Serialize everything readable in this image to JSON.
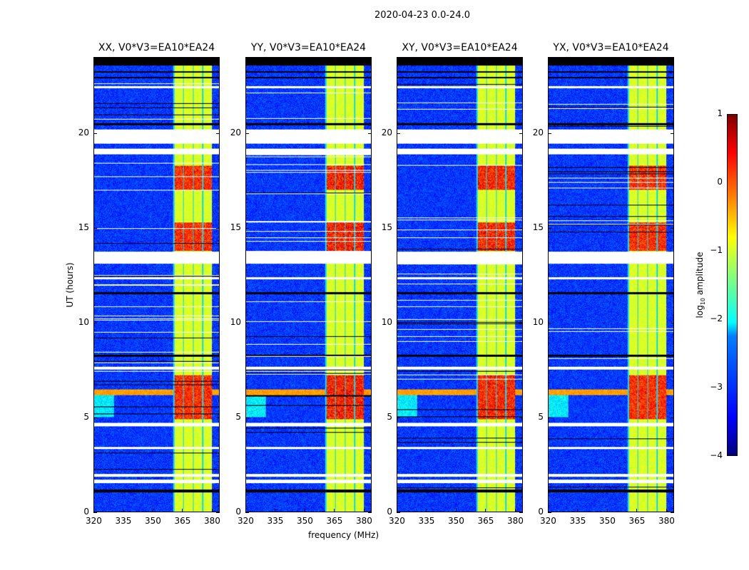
{
  "chart_data": {
    "type": "heatmap",
    "title": "2020-04-23 0.0-24.0",
    "xlabel": "frequency (MHz)",
    "ylabel": "UT (hours)",
    "xlim": [
      320,
      384
    ],
    "ylim": [
      0,
      24
    ],
    "xticks": [
      "320",
      "335",
      "350",
      "365",
      "380"
    ],
    "xtick_values": [
      320,
      335,
      350,
      365,
      380
    ],
    "yticks": [
      "0",
      "5",
      "10",
      "15",
      "20"
    ],
    "ytick_values": [
      0,
      5,
      10,
      15,
      20
    ],
    "panels": [
      {
        "title": "XX, V0*V3=EA10*EA24",
        "strong_rfi_scale": 1.0
      },
      {
        "title": "YY, V0*V3=EA10*EA24",
        "strong_rfi_scale": 1.2
      },
      {
        "title": "XY, V0*V3=EA10*EA24",
        "strong_rfi_scale": 1.1
      },
      {
        "title": "YX, V0*V3=EA10*EA24",
        "strong_rfi_scale": 1.0
      }
    ],
    "rfi_band_mhz": [
      360.5,
      380.5
    ],
    "strong_rfi_hours": [
      [
        13.8,
        15.3
      ],
      [
        4.9,
        7.2
      ],
      [
        17,
        18.3
      ]
    ],
    "broadband_rfi_hour": 6.3,
    "flagged_hours": [
      [
        19.45,
        20.2
      ],
      [
        13.1,
        13.75
      ],
      [
        4.5,
        4.7
      ],
      [
        1.5,
        1.7
      ],
      [
        1.85,
        2.0
      ],
      [
        18.9,
        19.2
      ],
      [
        12.3,
        12.4
      ],
      [
        7.5,
        7.65
      ],
      [
        3.3,
        3.4
      ],
      [
        22.4,
        22.5
      ]
    ],
    "black_rows_hours": [
      [
        23.6,
        24.0
      ],
      [
        23.2,
        23.3
      ],
      [
        22.9,
        23.0
      ],
      [
        1.0,
        1.15
      ],
      [
        20.45,
        20.55
      ],
      [
        11.5,
        11.6
      ],
      [
        8.2,
        8.3
      ]
    ],
    "colorbar": {
      "label_pre": "log",
      "label_sub": "10",
      "label_post": " amplitude",
      "ticks": [
        "1",
        "0",
        "−1",
        "−2",
        "−3",
        "−4"
      ],
      "range": [
        -4,
        1
      ]
    }
  }
}
